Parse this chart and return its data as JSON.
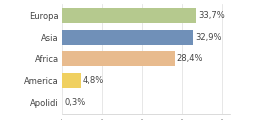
{
  "categories": [
    "Europa",
    "Asia",
    "Africa",
    "America",
    "Apolidi"
  ],
  "values": [
    33.7,
    32.9,
    28.4,
    4.8,
    0.3
  ],
  "labels": [
    "33,7%",
    "32,9%",
    "28,4%",
    "4,8%",
    "0,3%"
  ],
  "bar_colors": [
    "#b5c98e",
    "#7090b8",
    "#e8bb8e",
    "#f0d060",
    "#e8e8e8"
  ],
  "background_color": "#ffffff",
  "xlim": [
    0,
    42
  ],
  "label_fontsize": 6.0,
  "value_fontsize": 6.0,
  "bar_height": 0.68
}
